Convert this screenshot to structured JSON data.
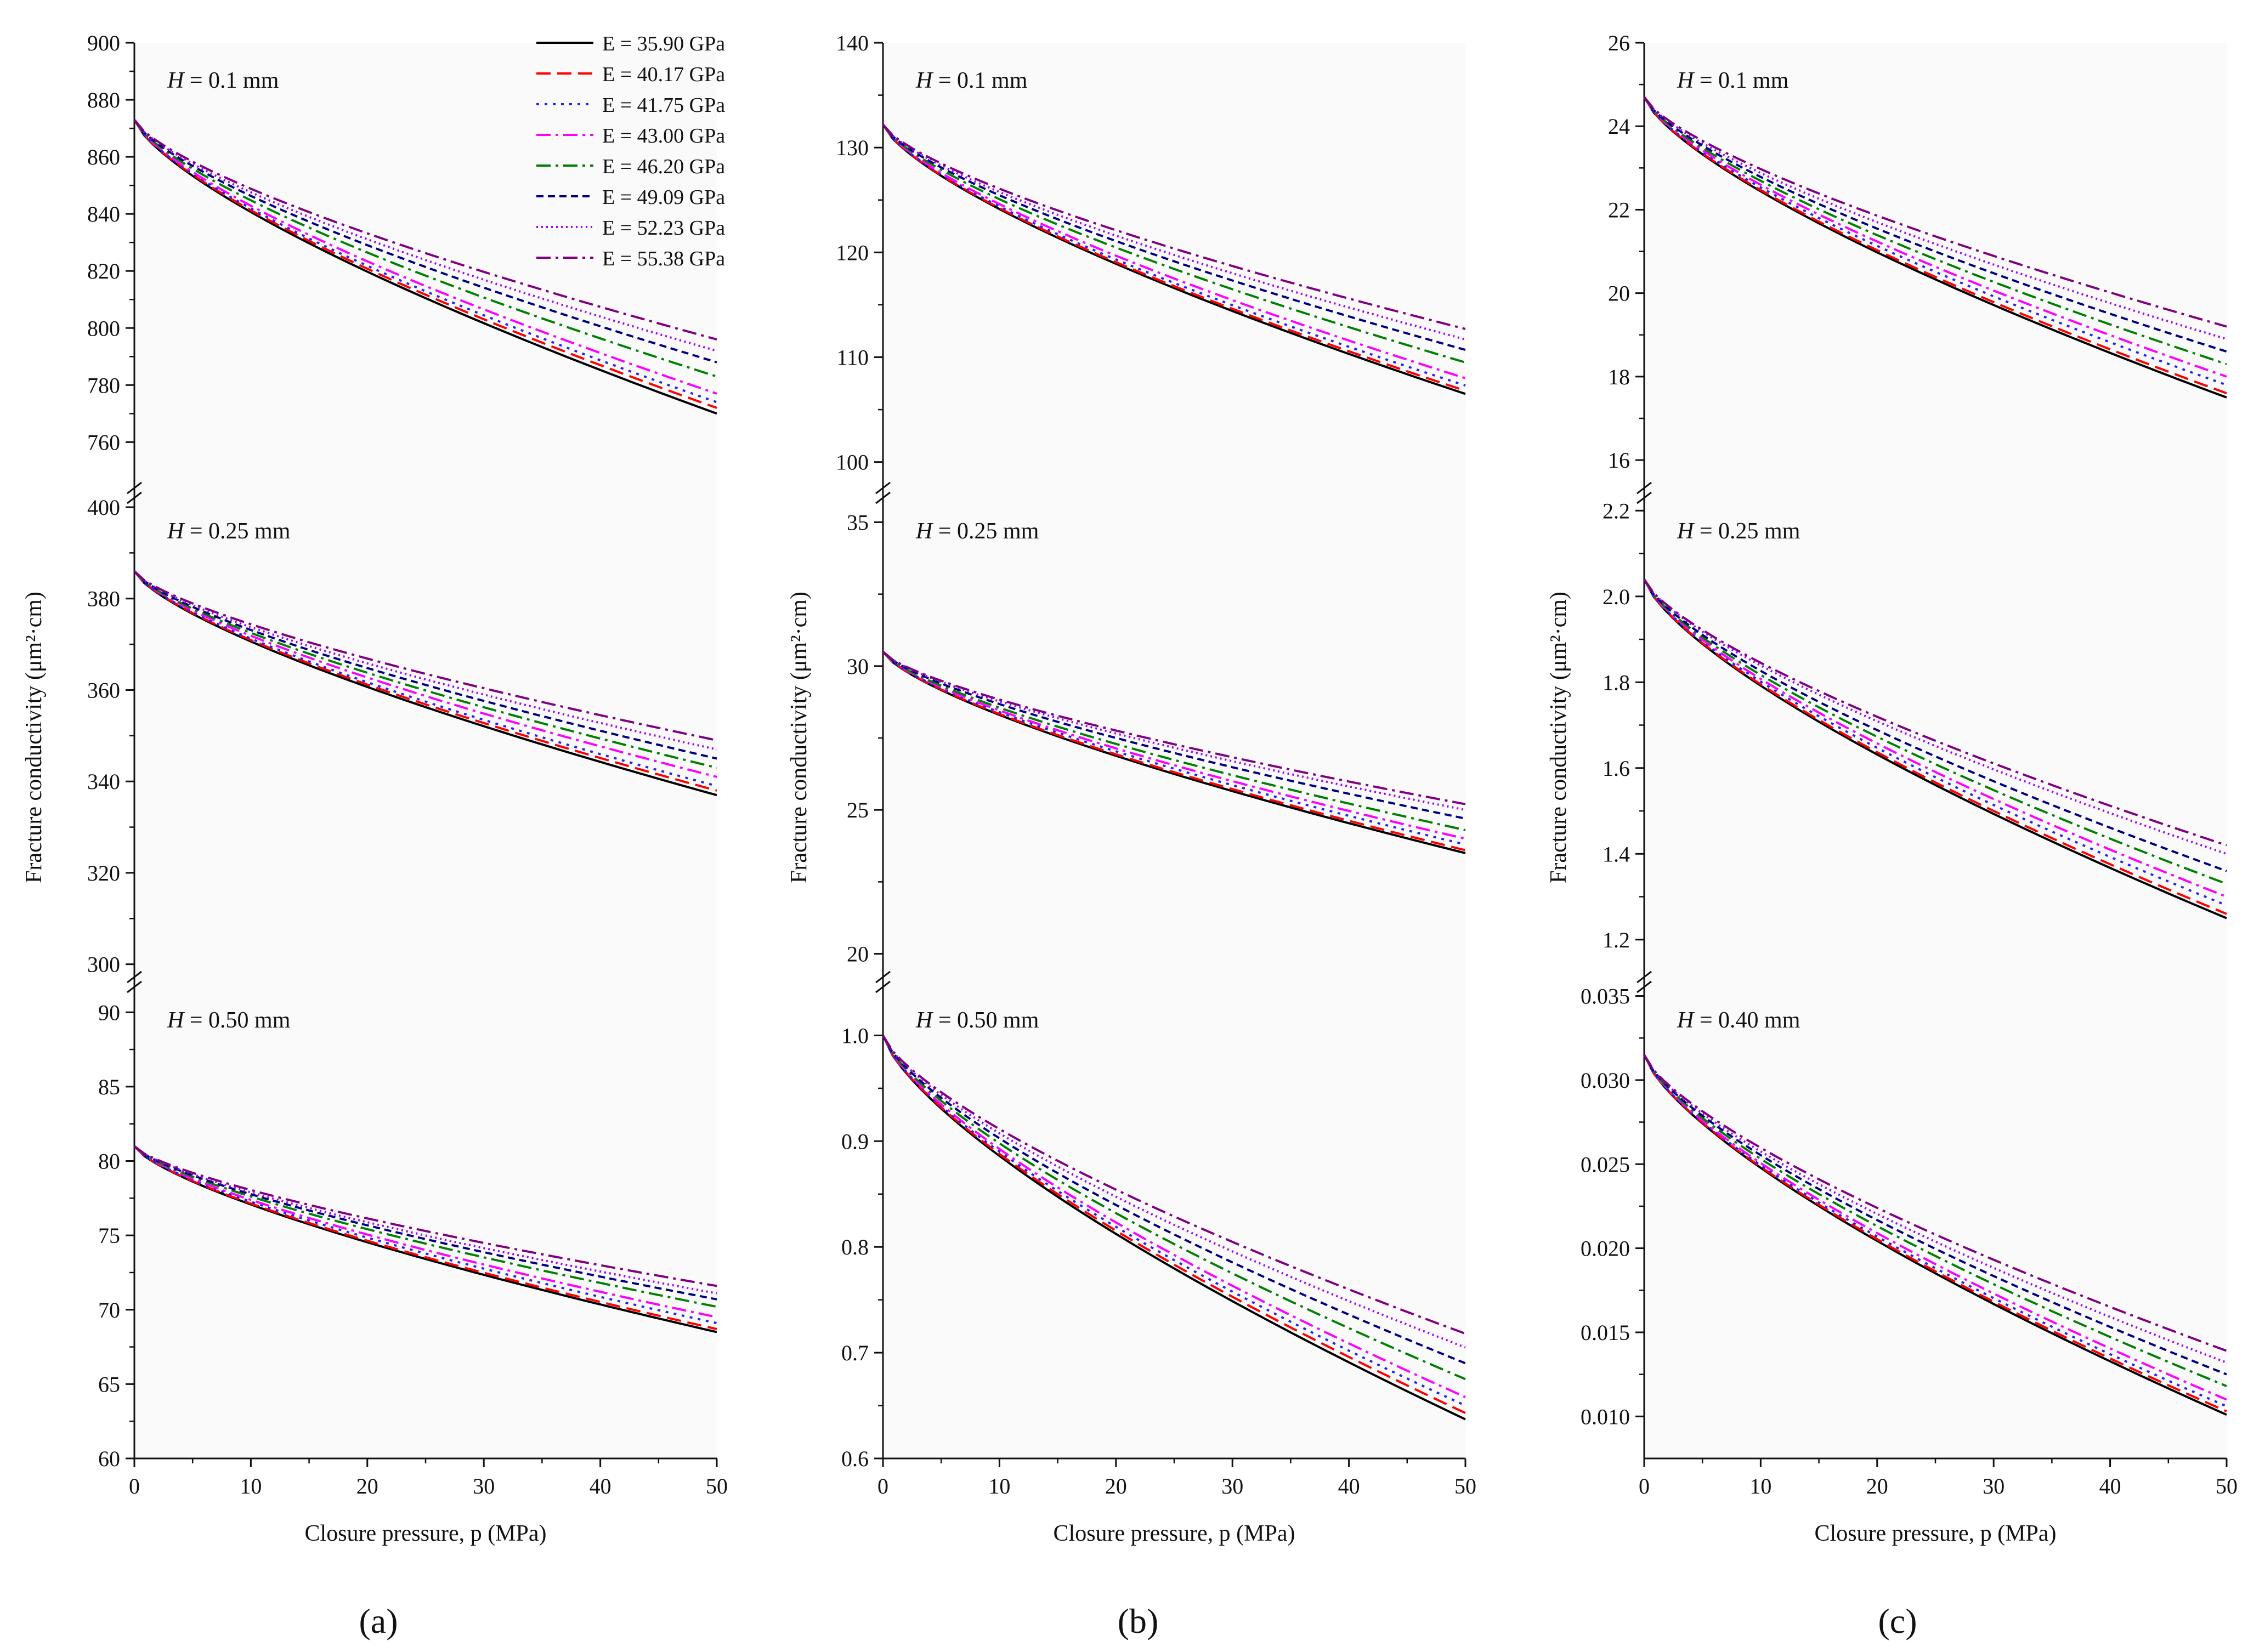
{
  "figure": {
    "panel_labels": [
      "(a)",
      "(b)",
      "(c)"
    ],
    "x_axis_label": "Closure pressure, p (MPa)",
    "y_axis_label": "Fracture conductivity (μm²·cm)"
  },
  "legend": [
    {
      "label": "E = 35.90 GPa",
      "color": "#000000",
      "dash": "solid"
    },
    {
      "label": "E = 40.17 GPa",
      "color": "#ff0000",
      "dash": "dash"
    },
    {
      "label": "E = 41.75 GPa",
      "color": "#1f1fff",
      "dash": "dot"
    },
    {
      "label": "E = 43.00 GPa",
      "color": "#ff00ff",
      "dash": "dashdot"
    },
    {
      "label": "E = 46.20 GPa",
      "color": "#008000",
      "dash": "dashdot"
    },
    {
      "label": "E = 49.09 GPa",
      "color": "#000080",
      "dash": "shortdash"
    },
    {
      "label": "E = 52.23 GPa",
      "color": "#a000ff",
      "dash": "shortdot"
    },
    {
      "label": "E = 55.38 GPa",
      "color": "#800080",
      "dash": "dashdot"
    }
  ],
  "chart_data": [
    {
      "type": "line",
      "panel": "(a)",
      "label": "H = 0.1 mm",
      "xlabel": "Closure pressure, p (MPa)",
      "ylabel": "Fracture conductivity (μm²·cm)",
      "xlim": [
        0,
        50
      ],
      "xticks": [
        0,
        10,
        20,
        30,
        40,
        50
      ],
      "ylim": [
        742,
        900
      ],
      "yticks": [
        760,
        780,
        800,
        820,
        840,
        860,
        880,
        900
      ],
      "ytick_decimals": 0,
      "start": 873,
      "end_values": [
        770,
        772,
        774,
        777,
        783,
        788,
        792,
        796
      ]
    },
    {
      "type": "line",
      "panel": "(a)",
      "label": "H = 0.25 mm",
      "xlabel": "Closure pressure, p (MPa)",
      "ylabel": "Fracture conductivity (μm²·cm)",
      "xlim": [
        0,
        50
      ],
      "xticks": [
        0,
        10,
        20,
        30,
        40,
        50
      ],
      "ylim": [
        296,
        403
      ],
      "yticks": [
        300,
        320,
        340,
        360,
        380,
        400
      ],
      "ytick_decimals": 0,
      "start": 386,
      "end_values": [
        337,
        338,
        339,
        341,
        343,
        345,
        347,
        349
      ]
    },
    {
      "type": "line",
      "panel": "(a)",
      "label": "H = 0.50 mm",
      "xlabel": "Closure pressure, p (MPa)",
      "ylabel": "Fracture conductivity (μm²·cm)",
      "xlim": [
        0,
        50
      ],
      "xticks": [
        0,
        10,
        20,
        30,
        40,
        50
      ],
      "ylim": [
        60,
        92
      ],
      "yticks": [
        60,
        65,
        70,
        75,
        80,
        85,
        90
      ],
      "ytick_decimals": 0,
      "start": 81,
      "end_values": [
        68.5,
        68.7,
        69.1,
        69.5,
        70.2,
        70.7,
        71.1,
        71.6
      ]
    },
    {
      "type": "line",
      "panel": "(b)",
      "label": "H = 0.1 mm",
      "xlabel": "Closure pressure, p (MPa)",
      "ylabel": "Fracture conductivity (μm²·cm)",
      "xlim": [
        0,
        50
      ],
      "xticks": [
        0,
        10,
        20,
        30,
        40,
        50
      ],
      "ylim": [
        97,
        140
      ],
      "yticks": [
        100,
        110,
        120,
        130,
        140
      ],
      "ytick_decimals": 0,
      "start": 132.2,
      "end_values": [
        106.5,
        106.8,
        107.3,
        108,
        109.5,
        110.7,
        111.7,
        112.7
      ]
    },
    {
      "type": "line",
      "panel": "(b)",
      "label": "H = 0.25 mm",
      "xlabel": "Closure pressure, p (MPa)",
      "ylabel": "Fracture conductivity (μm²·cm)",
      "xlim": [
        0,
        50
      ],
      "xticks": [
        0,
        10,
        20,
        30,
        40,
        50
      ],
      "ylim": [
        19,
        36
      ],
      "yticks": [
        20,
        25,
        30,
        35
      ],
      "ytick_decimals": 0,
      "start": 30.5,
      "end_values": [
        23.5,
        23.6,
        23.8,
        24,
        24.3,
        24.7,
        25,
        25.2
      ]
    },
    {
      "type": "line",
      "panel": "(b)",
      "label": "H = 0.50 mm",
      "xlabel": "Closure pressure, p (MPa)",
      "ylabel": "Fracture conductivity (μm²·cm)",
      "xlim": [
        0,
        50
      ],
      "xticks": [
        0,
        10,
        20,
        30,
        40,
        50
      ],
      "ylim": [
        0.6,
        1.05
      ],
      "yticks": [
        0.6,
        0.7,
        0.8,
        0.9,
        1.0
      ],
      "ytick_decimals": 1,
      "start": 1.0,
      "end_values": [
        0.637,
        0.643,
        0.65,
        0.658,
        0.675,
        0.69,
        0.705,
        0.718
      ]
    },
    {
      "type": "line",
      "panel": "(c)",
      "label": "H = 0.1 mm",
      "xlabel": "Closure pressure, p (MPa)",
      "ylabel": "Fracture conductivity (μm²·cm)",
      "xlim": [
        0,
        50
      ],
      "xticks": [
        0,
        10,
        20,
        30,
        40,
        50
      ],
      "ylim": [
        15.2,
        26
      ],
      "yticks": [
        16,
        18,
        20,
        22,
        24,
        26
      ],
      "ytick_decimals": 0,
      "start": 24.7,
      "end_values": [
        17.5,
        17.6,
        17.8,
        18,
        18.3,
        18.6,
        18.9,
        19.2
      ]
    },
    {
      "type": "line",
      "panel": "(c)",
      "label": "H = 0.25 mm",
      "xlabel": "Closure pressure, p (MPa)",
      "ylabel": "Fracture conductivity (μm²·cm)",
      "xlim": [
        0,
        50
      ],
      "xticks": [
        0,
        10,
        20,
        30,
        40,
        50
      ],
      "ylim": [
        1.1,
        2.24
      ],
      "yticks": [
        1.2,
        1.4,
        1.6,
        1.8,
        2.0,
        2.2
      ],
      "ytick_decimals": 1,
      "start": 2.04,
      "end_values": [
        1.25,
        1.26,
        1.28,
        1.3,
        1.33,
        1.36,
        1.4,
        1.42
      ]
    },
    {
      "type": "line",
      "panel": "(c)",
      "label": "H = 0.40 mm",
      "xlabel": "Closure pressure, p (MPa)",
      "ylabel": "Fracture conductivity (μm²·cm)",
      "xlim": [
        0,
        50
      ],
      "xticks": [
        0,
        10,
        20,
        30,
        40,
        50
      ],
      "ylim": [
        0.0075,
        0.0358
      ],
      "yticks": [
        0.01,
        0.015,
        0.02,
        0.025,
        0.03,
        0.035
      ],
      "ytick_decimals": 3,
      "start": 0.0315,
      "end_values": [
        0.0101,
        0.0103,
        0.0106,
        0.011,
        0.0118,
        0.0125,
        0.0132,
        0.0139
      ]
    }
  ]
}
